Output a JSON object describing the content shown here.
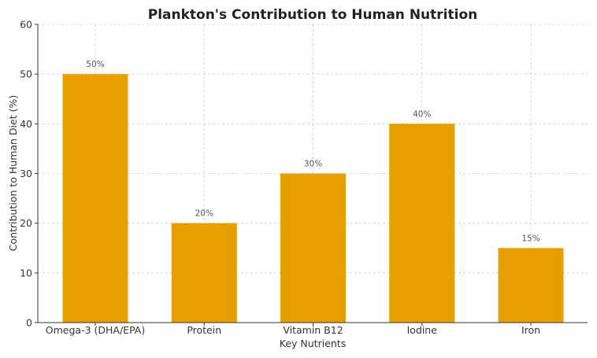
{
  "chart_data": {
    "type": "bar",
    "title": "Plankton's Contribution to Human Nutrition",
    "xlabel": "Key Nutrients",
    "ylabel": "Contribution to Human Diet (%)",
    "categories": [
      "Omega-3 (DHA/EPA)",
      "Protein",
      "Vitamin B12",
      "Iodine",
      "Iron"
    ],
    "values": [
      50,
      20,
      30,
      40,
      15
    ],
    "data_labels": [
      "50%",
      "20%",
      "30%",
      "40%",
      "15%"
    ],
    "ylim": [
      0,
      60
    ],
    "yticks": [
      0,
      10,
      20,
      30,
      40,
      50,
      60
    ],
    "grid": true,
    "bar_color": "#E5A000"
  }
}
